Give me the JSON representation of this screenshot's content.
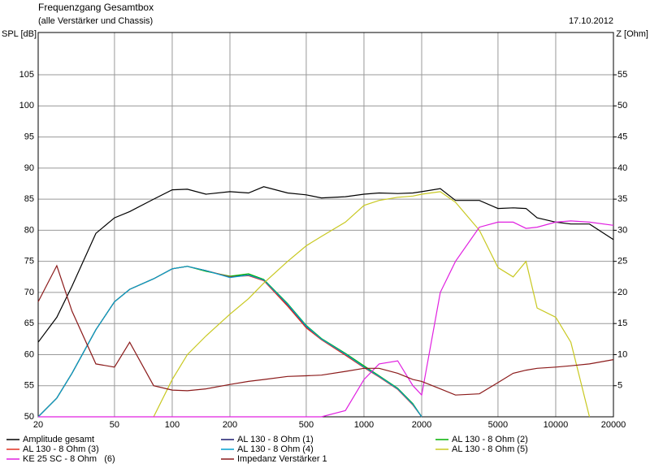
{
  "chart_data": {
    "type": "line",
    "title": "Frequenzgang Gesamtbox",
    "subtitle": "(alle Verstärker und Chassis)",
    "date": "17.10.2012",
    "y_label": "SPL [dB]",
    "y2_label": "Z [Ohm]",
    "xscale": "log",
    "grid": true,
    "x": [
      20,
      25,
      30,
      40,
      50,
      60,
      80,
      100,
      120,
      150,
      200,
      250,
      300,
      400,
      500,
      600,
      800,
      1000,
      1200,
      1500,
      1800,
      2000,
      2500,
      3000,
      4000,
      5000,
      6000,
      7000,
      8000,
      10000,
      12000,
      15000,
      20000
    ],
    "xlim": [
      20,
      20000
    ],
    "xticks": [
      20,
      50,
      100,
      200,
      500,
      1000,
      2000,
      5000,
      10000,
      20000
    ],
    "ylim": [
      50,
      111.8
    ],
    "yticks": [
      50,
      55,
      60,
      65,
      70,
      75,
      80,
      85,
      90,
      95,
      100,
      105
    ],
    "y2lim": [
      0,
      61.8
    ],
    "y2ticks": [
      5,
      10,
      15,
      20,
      25,
      30,
      35,
      40,
      45,
      50,
      55
    ],
    "series": [
      {
        "name": "Amplitude gesamt",
        "color": "#000000",
        "values": [
          62,
          66,
          71,
          79.5,
          82,
          83,
          85,
          86.5,
          86.6,
          85.8,
          86.2,
          86,
          87,
          86,
          85.7,
          85.2,
          85.4,
          85.8,
          86,
          85.9,
          86,
          86.2,
          86.7,
          84.8,
          84.8,
          83.5,
          83.6,
          83.5,
          82,
          81.3,
          81,
          81,
          78.5
        ]
      },
      {
        "name": "AL 130 - 8 Ohm (1)",
        "color": "#1a1a6e",
        "values": [
          50,
          53,
          57,
          64,
          68.5,
          70.5,
          72.2,
          73.8,
          74.2,
          73.5,
          72.5,
          72.8,
          72,
          68,
          64.5,
          62.5,
          60,
          58,
          56.5,
          54.5,
          52,
          50,
          null,
          null,
          null,
          null,
          null,
          null,
          null,
          null,
          null,
          null,
          null
        ]
      },
      {
        "name": "AL 130 - 8 Ohm (2)",
        "color": "#00b000",
        "values": [
          50,
          53,
          57,
          64,
          68.5,
          70.5,
          72.2,
          73.8,
          74.2,
          73.4,
          72.6,
          73,
          72.1,
          68.2,
          64.7,
          62.6,
          60.2,
          58.2,
          56.6,
          54.6,
          52.1,
          50,
          null,
          null,
          null,
          null,
          null,
          null,
          null,
          null,
          null,
          null,
          null
        ]
      },
      {
        "name": "AL 130 - 8 Ohm (3)",
        "color": "#e03020",
        "values": [
          50,
          53,
          57,
          64,
          68.5,
          70.5,
          72.2,
          73.8,
          74.2,
          73.5,
          72.5,
          72.7,
          71.9,
          67.8,
          64.3,
          62.4,
          59.9,
          57.9,
          56.4,
          54.4,
          51.9,
          50,
          null,
          null,
          null,
          null,
          null,
          null,
          null,
          null,
          null,
          null,
          null
        ]
      },
      {
        "name": "AL 130 - 8 Ohm (4)",
        "color": "#00a0d0",
        "values": [
          50,
          53,
          57,
          64,
          68.5,
          70.5,
          72.2,
          73.8,
          74.2,
          73.5,
          72.4,
          72.8,
          72,
          68.1,
          64.6,
          62.5,
          60.1,
          58,
          56.5,
          54.5,
          52,
          50,
          null,
          null,
          null,
          null,
          null,
          null,
          null,
          null,
          null,
          null,
          null
        ]
      },
      {
        "name": "AL 130 - 8 Ohm (5)",
        "color": "#c8c820",
        "values": [
          null,
          null,
          null,
          null,
          null,
          null,
          50,
          56,
          60,
          63,
          66.5,
          69,
          71.5,
          75,
          77.5,
          79,
          81.3,
          84,
          84.8,
          85.3,
          85.5,
          85.8,
          86.2,
          84.5,
          80,
          74,
          72.5,
          75,
          67.5,
          66,
          62,
          50,
          null
        ]
      },
      {
        "name": "KE 25 SC - 8 Ohm   (6)",
        "color": "#e020e0",
        "values": [
          50,
          50,
          50,
          50,
          50,
          50,
          50,
          50,
          50,
          50,
          50,
          50,
          50,
          50,
          50,
          50,
          51,
          56,
          58.5,
          59,
          55,
          53.5,
          70,
          75,
          80.5,
          81.3,
          81.3,
          80.3,
          80.5,
          81.3,
          81.5,
          81.3,
          80.8
        ]
      },
      {
        "name": "Impedanz Verstärker 1",
        "color": "#8b1a1a",
        "axis": "y2",
        "values": [
          18.5,
          24.3,
          17,
          8.5,
          8,
          12,
          5,
          4.3,
          4.2,
          4.5,
          5.2,
          5.7,
          6,
          6.5,
          6.6,
          6.7,
          7.3,
          7.8,
          7.8,
          7,
          6,
          5.7,
          4.5,
          3.5,
          3.7,
          5.5,
          7,
          7.5,
          7.8,
          8,
          8.2,
          8.5,
          9.2
        ]
      }
    ]
  }
}
